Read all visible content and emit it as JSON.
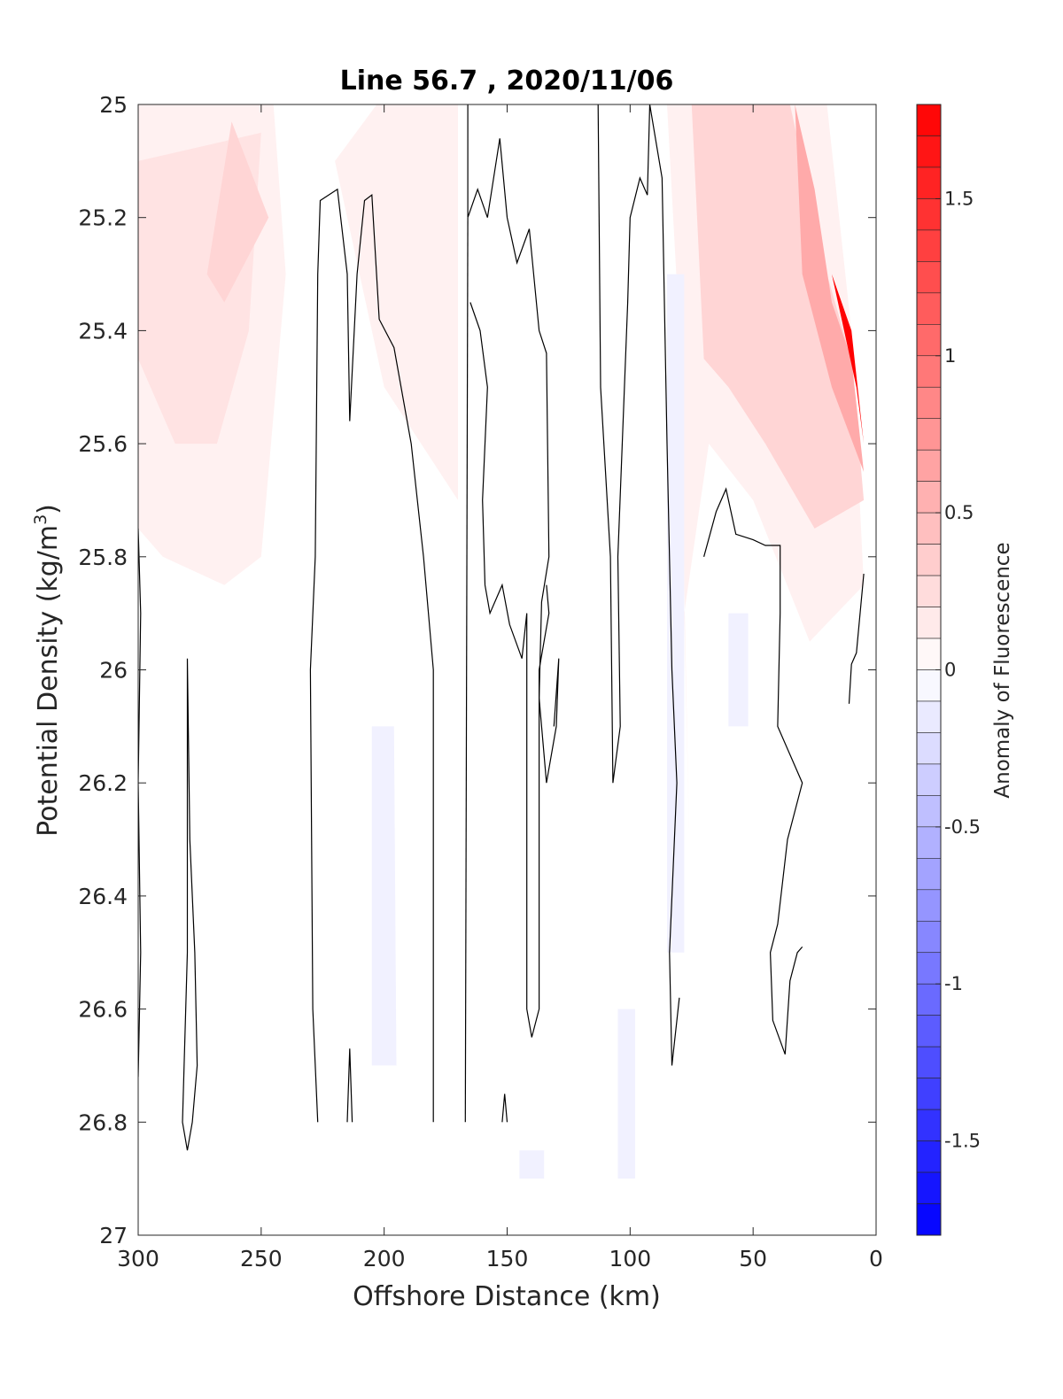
{
  "chart_data": {
    "type": "heatmap",
    "title": "Line 56.7 , 2020/11/06",
    "xlabel": "Offshore Distance (km)",
    "ylabel": "Potential Density (kg/m",
    "ylabel_sup": "3",
    "ylabel_close": ")",
    "xlim": [
      300,
      0
    ],
    "ylim": [
      25,
      27
    ],
    "x_reversed": true,
    "y_reversed": true,
    "x_ticks": [
      300,
      250,
      200,
      150,
      100,
      50,
      0
    ],
    "x_tick_labels": [
      "300",
      "250",
      "200",
      "150",
      "100",
      "50",
      "0"
    ],
    "y_ticks": [
      25,
      25.2,
      25.4,
      25.6,
      25.8,
      26,
      26.2,
      26.4,
      26.6,
      26.8,
      27
    ],
    "y_tick_labels": [
      "25",
      "25.2",
      "25.4",
      "25.6",
      "25.8",
      "26",
      "26.2",
      "26.4",
      "26.6",
      "26.8",
      "27"
    ],
    "grid": false,
    "colorbar": {
      "label": "Anomaly of Fluorescence",
      "range": [
        -1.8,
        1.8
      ],
      "levels": 36,
      "colors": {
        "negative": "#0000ff",
        "zero": "#ffffff",
        "positive": "#ff0000"
      },
      "ticks": [
        1.5,
        1,
        0.5,
        0,
        -0.5,
        -1,
        -1.5
      ],
      "tick_labels": [
        "1.5",
        "1",
        "0.5",
        "0",
        "-0.5",
        "-1",
        "-1.5"
      ]
    },
    "filled_regions": [
      {
        "name": "offshore-positive-outer",
        "value": 0.1,
        "points": [
          [
            300,
            25
          ],
          [
            245,
            25
          ],
          [
            240,
            25.3
          ],
          [
            244,
            25.5
          ],
          [
            250,
            25.8
          ],
          [
            265,
            25.85
          ],
          [
            290,
            25.8
          ],
          [
            300,
            25.75
          ]
        ]
      },
      {
        "name": "offshore-positive-inner",
        "value": 0.2,
        "points": [
          [
            300,
            25.1
          ],
          [
            250,
            25.05
          ],
          [
            255,
            25.4
          ],
          [
            268,
            25.6
          ],
          [
            285,
            25.6
          ],
          [
            300,
            25.45
          ]
        ]
      },
      {
        "name": "offshore-positive-core",
        "value": 0.3,
        "points": [
          [
            262,
            25.03
          ],
          [
            247,
            25.2
          ],
          [
            265,
            25.35
          ],
          [
            272,
            25.3
          ]
        ]
      },
      {
        "name": "mid-positive-band",
        "value": 0.1,
        "points": [
          [
            203,
            25
          ],
          [
            170,
            25
          ],
          [
            170,
            25.7
          ],
          [
            200,
            25.5
          ],
          [
            220,
            25.1
          ]
        ]
      },
      {
        "name": "nearshore-positive-outer",
        "value": 0.1,
        "points": [
          [
            85,
            25
          ],
          [
            20,
            25
          ],
          [
            10,
            25.4
          ],
          [
            5,
            25.85
          ],
          [
            27,
            25.95
          ],
          [
            50,
            25.7
          ],
          [
            68,
            25.6
          ],
          [
            78,
            25.9
          ],
          [
            76,
            26.3
          ],
          [
            80,
            25.4
          ]
        ]
      },
      {
        "name": "nearshore-positive-mid",
        "value": 0.3,
        "points": [
          [
            75,
            25
          ],
          [
            35,
            25
          ],
          [
            20,
            25.3
          ],
          [
            10,
            25.45
          ],
          [
            5,
            25.7
          ],
          [
            25,
            25.75
          ],
          [
            45,
            25.6
          ],
          [
            60,
            25.5
          ],
          [
            70,
            25.45
          ]
        ]
      },
      {
        "name": "nearshore-positive-inner",
        "value": 0.6,
        "points": [
          [
            33,
            25
          ],
          [
            25,
            25.15
          ],
          [
            18,
            25.35
          ],
          [
            10,
            25.45
          ],
          [
            5,
            25.65
          ],
          [
            18,
            25.5
          ],
          [
            30,
            25.3
          ]
        ]
      },
      {
        "name": "nearshore-positive-core",
        "value": 1.8,
        "points": [
          [
            18,
            25.3
          ],
          [
            10,
            25.4
          ],
          [
            5,
            25.6
          ],
          [
            8,
            25.5
          ]
        ]
      },
      {
        "name": "negative-patch-1",
        "value": -0.1,
        "points": [
          [
            205,
            26.1
          ],
          [
            196,
            26.1
          ],
          [
            195,
            26.7
          ],
          [
            205,
            26.7
          ]
        ]
      },
      {
        "name": "negative-patch-2",
        "value": -0.1,
        "points": [
          [
            85,
            25.3
          ],
          [
            78,
            25.3
          ],
          [
            78,
            26.5
          ],
          [
            85,
            26.5
          ]
        ]
      },
      {
        "name": "negative-patch-3",
        "value": -0.1,
        "points": [
          [
            60,
            25.9
          ],
          [
            52,
            25.9
          ],
          [
            52,
            26.1
          ],
          [
            60,
            26.1
          ]
        ]
      },
      {
        "name": "negative-patch-4",
        "value": -0.1,
        "points": [
          [
            105,
            26.6
          ],
          [
            98,
            26.6
          ],
          [
            98,
            26.9
          ],
          [
            105,
            26.9
          ]
        ]
      },
      {
        "name": "negative-patch-5",
        "value": -0.1,
        "points": [
          [
            145,
            26.85
          ],
          [
            135,
            26.85
          ],
          [
            135,
            26.9
          ],
          [
            145,
            26.9
          ]
        ]
      }
    ],
    "contour_lines": [
      {
        "value": 0,
        "points": [
          [
            300,
            25.75
          ],
          [
            299,
            25.9
          ],
          [
            300,
            26.2
          ],
          [
            299,
            26.5
          ],
          [
            300,
            26.72
          ]
        ]
      },
      {
        "value": 0,
        "points": [
          [
            280,
            25.98
          ],
          [
            279,
            26.3
          ],
          [
            277,
            26.5
          ],
          [
            276,
            26.7
          ],
          [
            278,
            26.8
          ],
          [
            280,
            26.85
          ],
          [
            282,
            26.8
          ],
          [
            280,
            26.5
          ],
          [
            280,
            26.2
          ],
          [
            280,
            25.98
          ]
        ]
      },
      {
        "value": 0,
        "points": [
          [
            227,
            26.8
          ],
          [
            229,
            26.6
          ],
          [
            230,
            26
          ],
          [
            228,
            25.8
          ],
          [
            227,
            25.3
          ],
          [
            226,
            25.17
          ],
          [
            219,
            25.15
          ],
          [
            215,
            25.3
          ],
          [
            214,
            25.56
          ],
          [
            211,
            25.3
          ],
          [
            208,
            25.17
          ],
          [
            205,
            25.16
          ],
          [
            202,
            25.38
          ],
          [
            196,
            25.43
          ],
          [
            189,
            25.6
          ],
          [
            184,
            25.8
          ],
          [
            180,
            26
          ],
          [
            180,
            26.5
          ],
          [
            180,
            26.8
          ]
        ]
      },
      {
        "value": 0,
        "points": [
          [
            215,
            26.8
          ],
          [
            214,
            26.67
          ],
          [
            213,
            26.8
          ]
        ]
      },
      {
        "value": 0,
        "points": [
          [
            166,
            25
          ],
          [
            166,
            25.2
          ],
          [
            162,
            25.15
          ],
          [
            158,
            25.2
          ],
          [
            153,
            25.06
          ],
          [
            150,
            25.2
          ],
          [
            146,
            25.28
          ],
          [
            141,
            25.22
          ],
          [
            137,
            25.4
          ],
          [
            134,
            25.44
          ],
          [
            133,
            25.8
          ],
          [
            136,
            25.88
          ],
          [
            137,
            26.05
          ],
          [
            136,
            26.1
          ],
          [
            134,
            26.2
          ],
          [
            130,
            26.1
          ],
          [
            129,
            25.98
          ],
          [
            131,
            26.1
          ]
        ]
      },
      {
        "value": 0,
        "points": [
          [
            165,
            25.35
          ],
          [
            161,
            25.4
          ],
          [
            158,
            25.5
          ],
          [
            160,
            25.7
          ],
          [
            159,
            25.85
          ],
          [
            157,
            25.9
          ],
          [
            152,
            25.85
          ],
          [
            149,
            25.92
          ],
          [
            144,
            25.98
          ],
          [
            142,
            25.9
          ],
          [
            142,
            26.6
          ],
          [
            140,
            26.65
          ],
          [
            137,
            26.6
          ],
          [
            137,
            26
          ],
          [
            133,
            25.9
          ],
          [
            134,
            25.85
          ]
        ]
      },
      {
        "value": 0,
        "points": [
          [
            166,
            25.2
          ],
          [
            167,
            26.8
          ]
        ]
      },
      {
        "value": 0,
        "points": [
          [
            152,
            26.8
          ],
          [
            151,
            26.75
          ],
          [
            150,
            26.8
          ]
        ]
      },
      {
        "value": 0,
        "points": [
          [
            113,
            25
          ],
          [
            112,
            25.5
          ],
          [
            108,
            25.8
          ],
          [
            107,
            26.2
          ],
          [
            104,
            26.1
          ],
          [
            105,
            25.8
          ],
          [
            101,
            25.35
          ],
          [
            100,
            25.2
          ],
          [
            96,
            25.13
          ],
          [
            93,
            25.16
          ],
          [
            92,
            25
          ],
          [
            87,
            25.13
          ],
          [
            85,
            25.6
          ],
          [
            83,
            26
          ],
          [
            81,
            26.2
          ],
          [
            84,
            26.5
          ],
          [
            83,
            26.7
          ],
          [
            80,
            26.58
          ]
        ]
      },
      {
        "value": 0,
        "points": [
          [
            70,
            25.8
          ],
          [
            65,
            25.72
          ],
          [
            61,
            25.68
          ],
          [
            57,
            25.76
          ],
          [
            50,
            25.77
          ],
          [
            45,
            25.78
          ],
          [
            39,
            25.78
          ],
          [
            39,
            25.9
          ],
          [
            40,
            26.1
          ],
          [
            35,
            26.15
          ],
          [
            30,
            26.2
          ],
          [
            36,
            26.3
          ],
          [
            40,
            26.45
          ],
          [
            43,
            26.5
          ],
          [
            42,
            26.62
          ],
          [
            37,
            26.68
          ],
          [
            35,
            26.55
          ],
          [
            32,
            26.5
          ],
          [
            30,
            26.49
          ]
        ]
      },
      {
        "value": 0,
        "points": [
          [
            5,
            25.83
          ],
          [
            8,
            25.97
          ],
          [
            10,
            25.99
          ],
          [
            11,
            26.06
          ]
        ]
      }
    ]
  }
}
